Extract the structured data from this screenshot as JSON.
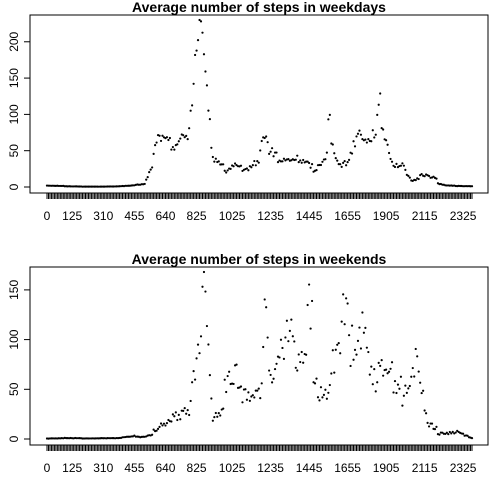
{
  "chart_data": [
    {
      "type": "scatter",
      "title": "Average number of steps in weekdays",
      "xlabel": "",
      "ylabel": "",
      "xlim": [
        0,
        2355
      ],
      "ylim": [
        0,
        230
      ],
      "yticks": [
        0,
        50,
        100,
        150,
        200
      ],
      "x_tick_labels": [
        "0",
        "125",
        "310",
        "455",
        "640",
        "825",
        "1025",
        "1235",
        "1445",
        "1655",
        "1905",
        "2115",
        "2325"
      ],
      "x_tick_every": 5,
      "grid": false,
      "legend": "none",
      "point_color": "#000000",
      "anchors": [
        [
          0,
          2
        ],
        [
          100,
          1
        ],
        [
          200,
          0.5
        ],
        [
          300,
          0.5
        ],
        [
          400,
          1
        ],
        [
          500,
          3
        ],
        [
          530,
          4
        ],
        [
          545,
          20
        ],
        [
          600,
          50
        ],
        [
          610,
          60
        ],
        [
          620,
          75
        ],
        [
          630,
          65
        ],
        [
          700,
          55
        ],
        [
          730,
          65
        ],
        [
          800,
          85
        ],
        [
          815,
          140
        ],
        [
          820,
          180
        ],
        [
          825,
          200
        ],
        [
          830,
          195
        ],
        [
          835,
          230
        ],
        [
          840,
          215
        ],
        [
          845,
          190
        ],
        [
          850,
          170
        ],
        [
          855,
          175
        ],
        [
          900,
          125
        ],
        [
          905,
          95
        ],
        [
          910,
          88
        ],
        [
          915,
          60
        ],
        [
          920,
          40
        ],
        [
          1000,
          20
        ],
        [
          1030,
          30
        ],
        [
          1100,
          20
        ],
        [
          1200,
          50
        ],
        [
          1215,
          75
        ],
        [
          1230,
          50
        ],
        [
          1300,
          35
        ],
        [
          1400,
          40
        ],
        [
          1500,
          20
        ],
        [
          1545,
          45
        ],
        [
          1550,
          90
        ],
        [
          1555,
          95
        ],
        [
          1600,
          60
        ],
        [
          1630,
          30
        ],
        [
          1700,
          40
        ],
        [
          1730,
          75
        ],
        [
          1800,
          60
        ],
        [
          1830,
          80
        ],
        [
          1845,
          115
        ],
        [
          1850,
          85
        ],
        [
          1900,
          70
        ],
        [
          1930,
          30
        ],
        [
          2000,
          30
        ],
        [
          2030,
          8
        ],
        [
          2100,
          18
        ],
        [
          2130,
          15
        ],
        [
          2200,
          5
        ],
        [
          2230,
          2
        ],
        [
          2355,
          1
        ]
      ],
      "jitter": 0.12
    },
    {
      "type": "scatter",
      "title": "Average number of steps in weekends",
      "xlabel": "",
      "ylabel": "",
      "xlim": [
        0,
        2355
      ],
      "ylim": [
        0,
        168
      ],
      "yticks": [
        0,
        50,
        100,
        150
      ],
      "x_tick_labels": [
        "0",
        "125",
        "310",
        "455",
        "640",
        "825",
        "1025",
        "1235",
        "1445",
        "1655",
        "1905",
        "2115",
        "2325"
      ],
      "x_tick_every": 5,
      "grid": false,
      "legend": "none",
      "point_color": "#000000",
      "anchors": [
        [
          0,
          0.5
        ],
        [
          100,
          1
        ],
        [
          200,
          0.5
        ],
        [
          400,
          1
        ],
        [
          455,
          3
        ],
        [
          530,
          2
        ],
        [
          600,
          8
        ],
        [
          630,
          15
        ],
        [
          700,
          20
        ],
        [
          730,
          25
        ],
        [
          800,
          30
        ],
        [
          815,
          60
        ],
        [
          830,
          90
        ],
        [
          845,
          130
        ],
        [
          850,
          160
        ],
        [
          900,
          140
        ],
        [
          905,
          105
        ],
        [
          910,
          70
        ],
        [
          915,
          40
        ],
        [
          920,
          20
        ],
        [
          1000,
          50
        ],
        [
          1030,
          70
        ],
        [
          1100,
          40
        ],
        [
          1130,
          50
        ],
        [
          1200,
          35
        ],
        [
          1215,
          140
        ],
        [
          1230,
          60
        ],
        [
          1300,
          90
        ],
        [
          1330,
          110
        ],
        [
          1400,
          80
        ],
        [
          1430,
          90
        ],
        [
          1445,
          130
        ],
        [
          1500,
          60
        ],
        [
          1530,
          40
        ],
        [
          1600,
          70
        ],
        [
          1630,
          110
        ],
        [
          1645,
          125
        ],
        [
          1655,
          145
        ],
        [
          1700,
          90
        ],
        [
          1730,
          110
        ],
        [
          1800,
          90
        ],
        [
          1830,
          60
        ],
        [
          1900,
          85
        ],
        [
          1930,
          60
        ],
        [
          2000,
          40
        ],
        [
          2030,
          55
        ],
        [
          2045,
          85
        ],
        [
          2100,
          60
        ],
        [
          2115,
          30
        ],
        [
          2130,
          15
        ],
        [
          2200,
          5
        ],
        [
          2300,
          8
        ],
        [
          2355,
          1
        ]
      ],
      "jitter": 0.22
    }
  ]
}
